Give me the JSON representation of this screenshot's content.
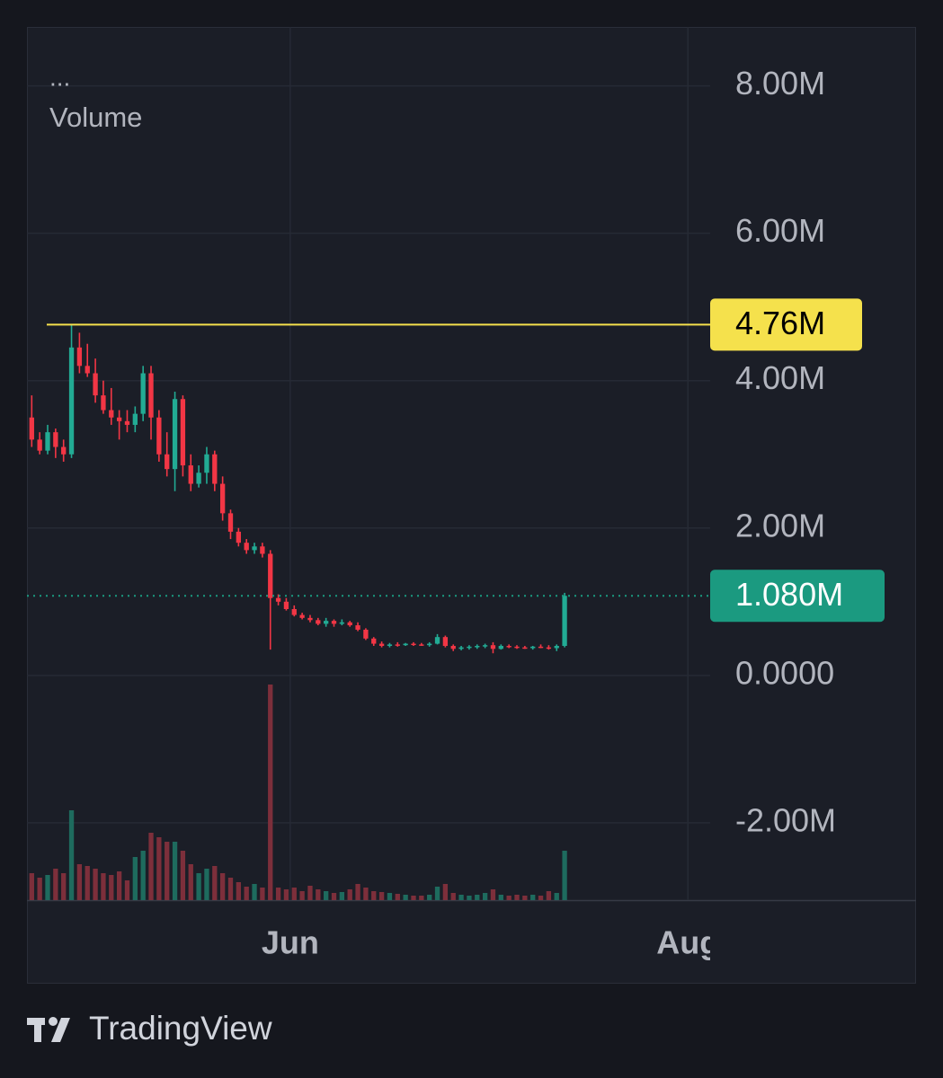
{
  "chart_data": {
    "type": "candlestick",
    "menu_label": "...",
    "indicator_label": "Volume",
    "ylim": [
      -3050000,
      8800000
    ],
    "yticks": [
      {
        "value": 8000000,
        "label": "8.00M"
      },
      {
        "value": 6000000,
        "label": "6.00M"
      },
      {
        "value": 4000000,
        "label": "4.00M"
      },
      {
        "value": 2000000,
        "label": "2.00M"
      },
      {
        "value": 0,
        "label": "0.0000"
      },
      {
        "value": -2000000,
        "label": "-2.00M"
      }
    ],
    "xlim": [
      -0.6,
      85.3
    ],
    "xticks": [
      {
        "value": 32.5,
        "label": "Jun"
      },
      {
        "value": 82.5,
        "label": "Aug"
      }
    ],
    "grid": true,
    "up_color": "#22ab94",
    "down_color": "#f23645",
    "volume_up_color": "#1e6b5e",
    "volume_down_color": "#7d2f3b",
    "vlim": [
      0,
      250
    ],
    "open": [
      3500000,
      3200000,
      3050000,
      3300000,
      3100000,
      3000000,
      4450000,
      4200000,
      4100000,
      3800000,
      3600000,
      3500000,
      3450000,
      3400000,
      3550000,
      4100000,
      3500000,
      3000000,
      2800000,
      3750000,
      2850000,
      2600000,
      2750000,
      3000000,
      2600000,
      2200000,
      1950000,
      1800000,
      1700000,
      1750000,
      1650000,
      1050000,
      1000000,
      900000,
      820000,
      780000,
      750000,
      700000,
      740000,
      700000,
      720000,
      680000,
      620000,
      500000,
      430000,
      400000,
      420000,
      410000,
      430000,
      420000,
      410000,
      430000,
      520000,
      400000,
      360000,
      380000,
      390000,
      400000,
      410000,
      360000,
      400000,
      390000,
      380000,
      370000,
      390000,
      380000,
      370000,
      400000
    ],
    "high": [
      3800000,
      3300000,
      3400000,
      3350000,
      3200000,
      4760000,
      4650000,
      4500000,
      4300000,
      4000000,
      3900000,
      3600000,
      3600000,
      3650000,
      4200000,
      4200000,
      3600000,
      3300000,
      3850000,
      3800000,
      3000000,
      2850000,
      3100000,
      3050000,
      2700000,
      2250000,
      2000000,
      1850000,
      1800000,
      1800000,
      1700000,
      1100000,
      1050000,
      950000,
      850000,
      820000,
      780000,
      780000,
      760000,
      760000,
      740000,
      720000,
      640000,
      520000,
      460000,
      440000,
      450000,
      440000,
      450000,
      440000,
      450000,
      560000,
      540000,
      420000,
      400000,
      410000,
      420000,
      430000,
      450000,
      420000,
      420000,
      410000,
      400000,
      400000,
      420000,
      410000,
      420000,
      1120000
    ],
    "low": [
      3100000,
      3000000,
      3000000,
      2950000,
      2900000,
      2950000,
      4100000,
      4050000,
      3700000,
      3550000,
      3400000,
      3200000,
      3300000,
      3300000,
      3450000,
      3200000,
      2900000,
      2700000,
      2500000,
      2700000,
      2500000,
      2550000,
      2600000,
      2500000,
      2100000,
      1850000,
      1750000,
      1650000,
      1650000,
      1600000,
      350000,
      950000,
      880000,
      800000,
      760000,
      720000,
      680000,
      660000,
      660000,
      680000,
      660000,
      600000,
      480000,
      400000,
      380000,
      380000,
      390000,
      400000,
      400000,
      400000,
      390000,
      420000,
      380000,
      330000,
      340000,
      350000,
      360000,
      370000,
      300000,
      350000,
      370000,
      360000,
      360000,
      350000,
      370000,
      350000,
      330000,
      380000
    ],
    "close": [
      3200000,
      3050000,
      3300000,
      3100000,
      3000000,
      4450000,
      4200000,
      4100000,
      3800000,
      3600000,
      3500000,
      3450000,
      3400000,
      3550000,
      4100000,
      3500000,
      3000000,
      2800000,
      3750000,
      2850000,
      2600000,
      2750000,
      3000000,
      2600000,
      2200000,
      1950000,
      1800000,
      1700000,
      1750000,
      1650000,
      1050000,
      1000000,
      900000,
      820000,
      780000,
      750000,
      700000,
      740000,
      700000,
      720000,
      680000,
      620000,
      500000,
      430000,
      400000,
      420000,
      410000,
      430000,
      420000,
      410000,
      430000,
      520000,
      400000,
      360000,
      380000,
      390000,
      400000,
      410000,
      360000,
      400000,
      390000,
      380000,
      370000,
      390000,
      380000,
      370000,
      400000,
      1080000
    ],
    "volume": [
      30,
      25,
      28,
      35,
      30,
      100,
      40,
      38,
      35,
      30,
      28,
      32,
      22,
      48,
      55,
      75,
      70,
      65,
      65,
      55,
      40,
      30,
      35,
      38,
      30,
      25,
      20,
      15,
      18,
      14,
      240,
      14,
      12,
      14,
      10,
      16,
      12,
      10,
      8,
      9,
      12,
      18,
      14,
      10,
      9,
      8,
      7,
      6,
      5,
      5,
      6,
      15,
      18,
      8,
      6,
      5,
      6,
      8,
      12,
      6,
      5,
      6,
      5,
      6,
      5,
      10,
      8,
      55
    ],
    "horizontal_line": {
      "value": 4760000,
      "label": "4.76M",
      "color": "#f5e14c"
    },
    "last_price": {
      "value": 1080000,
      "label": "1.080M",
      "color": "#1b9a80"
    },
    "footer": "TradingView"
  }
}
